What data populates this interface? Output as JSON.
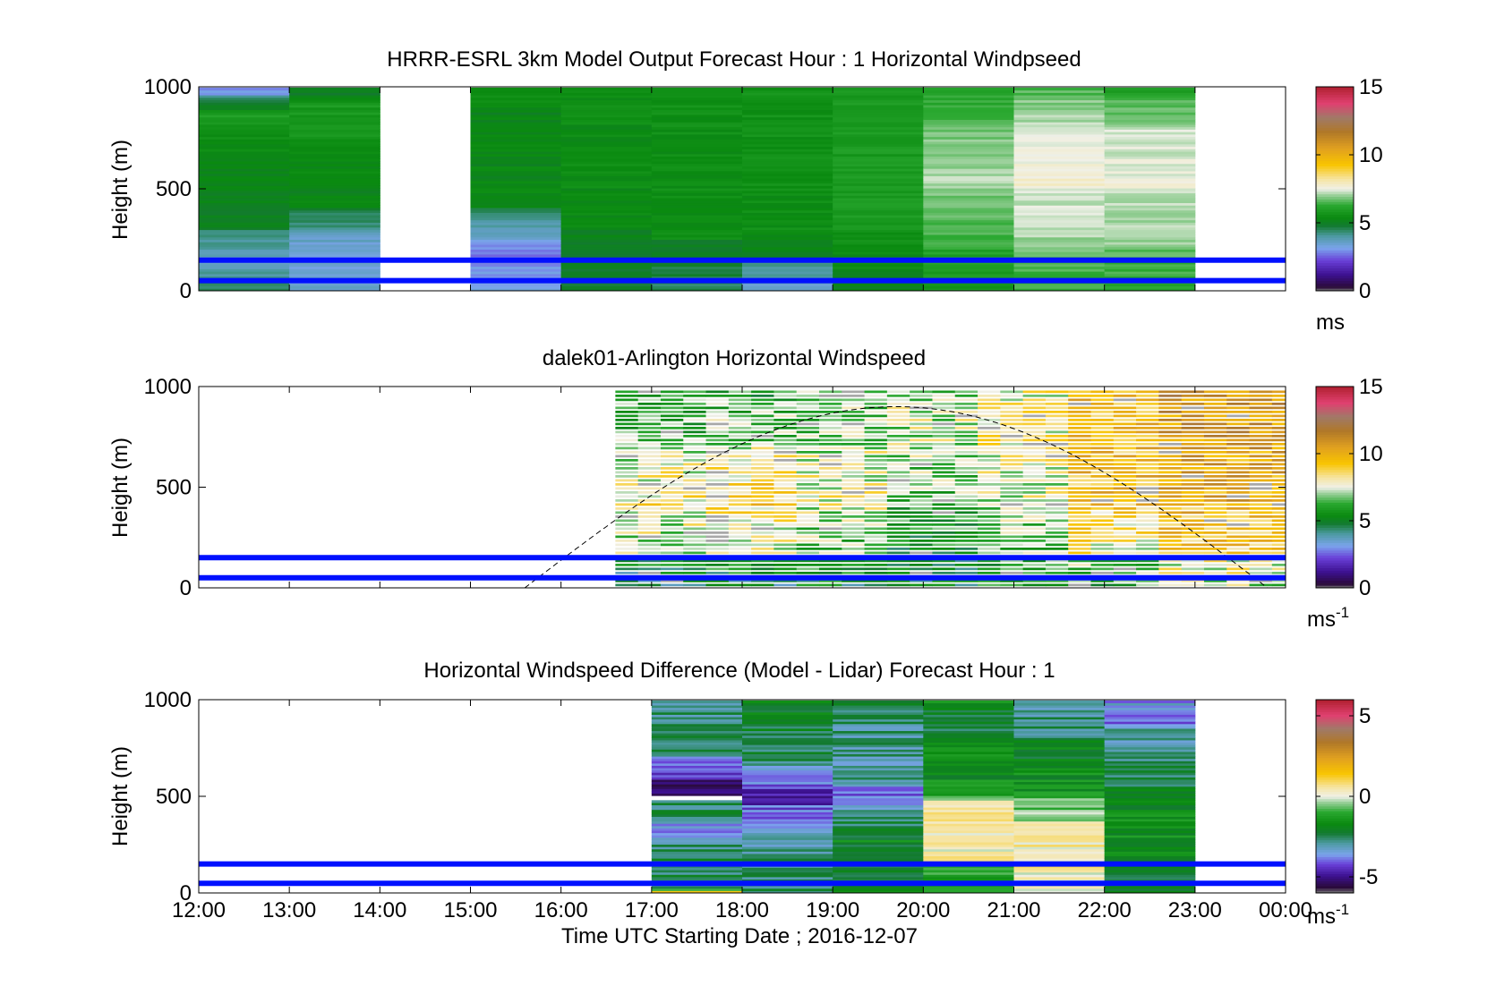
{
  "figure": {
    "xlabel": "Time UTC  Starting Date ; 2016-12-07",
    "x_ticks": [
      "12:00",
      "13:00",
      "14:00",
      "15:00",
      "16:00",
      "17:00",
      "18:00",
      "19:00",
      "20:00",
      "21:00",
      "22:00",
      "23:00",
      "00:00"
    ]
  },
  "chart_data": [
    {
      "type": "heatmap",
      "title": "HRRR-ESRL 3km Model Output   Forecast Hour : 1 Horizontal Windpseed",
      "ylabel": "Height (m)",
      "xlim_hours": [
        12,
        24
      ],
      "ylim": [
        0,
        1000
      ],
      "y_ticks": [
        "0",
        "500",
        "1000"
      ],
      "colorbar": {
        "ticks": [
          "0",
          "5",
          "10",
          "15"
        ],
        "tick_values": [
          0,
          5,
          10,
          15
        ],
        "range": [
          0,
          15
        ],
        "unit": "ms",
        "unit_sup": ""
      },
      "reference_heights": [
        150,
        50
      ],
      "columns": [
        {
          "t0": 12,
          "t1": 13,
          "segments": [
            [
              0,
              4.5
            ],
            [
              100,
              3.5
            ],
            [
              300,
              5
            ],
            [
              500,
              5.2
            ],
            [
              700,
              5.5
            ],
            [
              850,
              6
            ],
            [
              950,
              3
            ]
          ]
        },
        {
          "t0": 13,
          "t1": 14,
          "segments": [
            [
              0,
              3.5
            ],
            [
              150,
              3.2
            ],
            [
              300,
              4.2
            ],
            [
              400,
              5.2
            ],
            [
              700,
              5.6
            ],
            [
              900,
              6
            ],
            [
              950,
              5
            ]
          ]
        },
        {
          "t0": 15,
          "t1": 16,
          "segments": [
            [
              0,
              3.3
            ],
            [
              150,
              2.6
            ],
            [
              250,
              3.5
            ],
            [
              400,
              5.3
            ],
            [
              850,
              5.2
            ],
            [
              950,
              5.6
            ]
          ]
        },
        {
          "t0": 16,
          "t1": 17,
          "segments": [
            [
              0,
              4.8
            ],
            [
              300,
              5.4
            ],
            [
              950,
              5.5
            ]
          ]
        },
        {
          "t0": 17,
          "t1": 18,
          "segments": [
            [
              0,
              4.5
            ],
            [
              250,
              5.5
            ],
            [
              950,
              5.6
            ]
          ]
        },
        {
          "t0": 18,
          "t1": 19,
          "segments": [
            [
              0,
              3.5
            ],
            [
              150,
              5
            ],
            [
              300,
              5.5
            ],
            [
              950,
              5.7
            ]
          ]
        },
        {
          "t0": 19,
          "t1": 20,
          "segments": [
            [
              0,
              5.2
            ],
            [
              300,
              5.9
            ],
            [
              950,
              5.8
            ]
          ]
        },
        {
          "t0": 20,
          "t1": 21,
          "segments": [
            [
              0,
              5.8
            ],
            [
              200,
              6.3
            ],
            [
              500,
              7.2
            ],
            [
              800,
              6.5
            ],
            [
              950,
              6
            ]
          ]
        },
        {
          "t0": 21,
          "t1": 22,
          "segments": [
            [
              0,
              6.3
            ],
            [
              200,
              7
            ],
            [
              500,
              7.8
            ],
            [
              800,
              7.2
            ],
            [
              950,
              6.6
            ]
          ]
        },
        {
          "t0": 22,
          "t1": 23,
          "segments": [
            [
              0,
              6.2
            ],
            [
              200,
              7
            ],
            [
              500,
              7.6
            ],
            [
              800,
              7
            ],
            [
              950,
              6
            ]
          ]
        }
      ]
    },
    {
      "type": "heatmap",
      "title": "dalek01-Arlington  Horizontal Windspeed",
      "ylabel": "Height (m)",
      "xlim_hours": [
        12,
        24
      ],
      "ylim": [
        0,
        1000
      ],
      "y_ticks": [
        "0",
        "500",
        "1000"
      ],
      "colorbar": {
        "ticks": [
          "0",
          "5",
          "10",
          "15"
        ],
        "tick_values": [
          0,
          5,
          10,
          15
        ],
        "range": [
          0,
          15
        ],
        "unit": "ms",
        "unit_sup": "-1"
      },
      "reference_heights": [
        150,
        50
      ],
      "data_start_hour": 16.6,
      "data_end_hour": 23.9,
      "curve": {
        "start_hour": 15.6,
        "peak_hour": 19.7,
        "end_hour": 23.8,
        "peak_height": 900
      },
      "columns": [
        {
          "hour": 17,
          "segments": [
            [
              0,
              4
            ],
            [
              150,
              7
            ],
            [
              400,
              8.5
            ],
            [
              700,
              6.5
            ],
            [
              950,
              6
            ]
          ]
        },
        {
          "hour": 18,
          "segments": [
            [
              0,
              4.5
            ],
            [
              150,
              7.5
            ],
            [
              400,
              9
            ],
            [
              700,
              7
            ],
            [
              950,
              6
            ]
          ]
        },
        {
          "hour": 19,
          "segments": [
            [
              0,
              5
            ],
            [
              150,
              6.5
            ],
            [
              400,
              8
            ],
            [
              700,
              7
            ],
            [
              950,
              6.5
            ]
          ]
        },
        {
          "hour": 20,
          "segments": [
            [
              0,
              5
            ],
            [
              150,
              5.5
            ],
            [
              400,
              6.5
            ],
            [
              700,
              7.5
            ],
            [
              950,
              7
            ]
          ]
        },
        {
          "hour": 21,
          "segments": [
            [
              0,
              5.5
            ],
            [
              150,
              6.5
            ],
            [
              400,
              7.5
            ],
            [
              700,
              8
            ],
            [
              950,
              8
            ]
          ]
        },
        {
          "hour": 22,
          "segments": [
            [
              0,
              6
            ],
            [
              150,
              8
            ],
            [
              400,
              9.5
            ],
            [
              700,
              9.5
            ],
            [
              950,
              9.5
            ]
          ]
        },
        {
          "hour": 23,
          "segments": [
            [
              0,
              7
            ],
            [
              150,
              9
            ],
            [
              400,
              10
            ],
            [
              700,
              10.5
            ],
            [
              950,
              11
            ]
          ]
        }
      ]
    },
    {
      "type": "heatmap",
      "title": "Horizontal Windspeed Difference (Model - Lidar) Forecast Hour : 1",
      "ylabel": "Height (m)",
      "xlim_hours": [
        12,
        24
      ],
      "ylim": [
        0,
        1000
      ],
      "y_ticks": [
        "0",
        "500",
        "1000"
      ],
      "colorbar": {
        "ticks": [
          "-5",
          "0",
          "5"
        ],
        "tick_values": [
          -5,
          0,
          5
        ],
        "range": [
          -6,
          6
        ],
        "unit": "ms",
        "unit_sup": "-1"
      },
      "reference_heights": [
        150,
        50
      ],
      "columns": [
        {
          "t0": 17,
          "t1": 18,
          "segments": [
            [
              0,
              1
            ],
            [
              20,
              -2.5
            ],
            [
              200,
              -2.3
            ],
            [
              280,
              -4
            ],
            [
              350,
              -3
            ],
            [
              400,
              -2.5
            ],
            [
              470,
              null
            ],
            [
              500,
              -5.5
            ],
            [
              600,
              -4.5
            ],
            [
              700,
              -2.5
            ],
            [
              950,
              -2.8
            ]
          ]
        },
        {
          "t0": 18,
          "t1": 19,
          "segments": [
            [
              0,
              -2.5
            ],
            [
              200,
              -2.7
            ],
            [
              450,
              -5
            ],
            [
              550,
              -4
            ],
            [
              650,
              -2.5
            ],
            [
              900,
              -2
            ]
          ]
        },
        {
          "t0": 19,
          "t1": 20,
          "segments": [
            [
              0,
              -2
            ],
            [
              300,
              -1.8
            ],
            [
              450,
              -4.5
            ],
            [
              550,
              -3
            ],
            [
              900,
              -2.5
            ]
          ]
        },
        {
          "t0": 20,
          "t1": 21,
          "segments": [
            [
              0,
              -1.5
            ],
            [
              150,
              0.3
            ],
            [
              450,
              0.8
            ],
            [
              500,
              -1.5
            ],
            [
              800,
              -2.2
            ],
            [
              950,
              -1.8
            ]
          ]
        },
        {
          "t0": 21,
          "t1": 22,
          "segments": [
            [
              0,
              0.2
            ],
            [
              150,
              0.5
            ],
            [
              350,
              0
            ],
            [
              500,
              -1.5
            ],
            [
              800,
              -2.5
            ],
            [
              950,
              -3
            ]
          ]
        },
        {
          "t0": 22,
          "t1": 23,
          "segments": [
            [
              0,
              -2.2
            ],
            [
              200,
              -1.6
            ],
            [
              500,
              -2
            ],
            [
              850,
              -4
            ],
            [
              930,
              -3.5
            ]
          ]
        }
      ]
    }
  ]
}
